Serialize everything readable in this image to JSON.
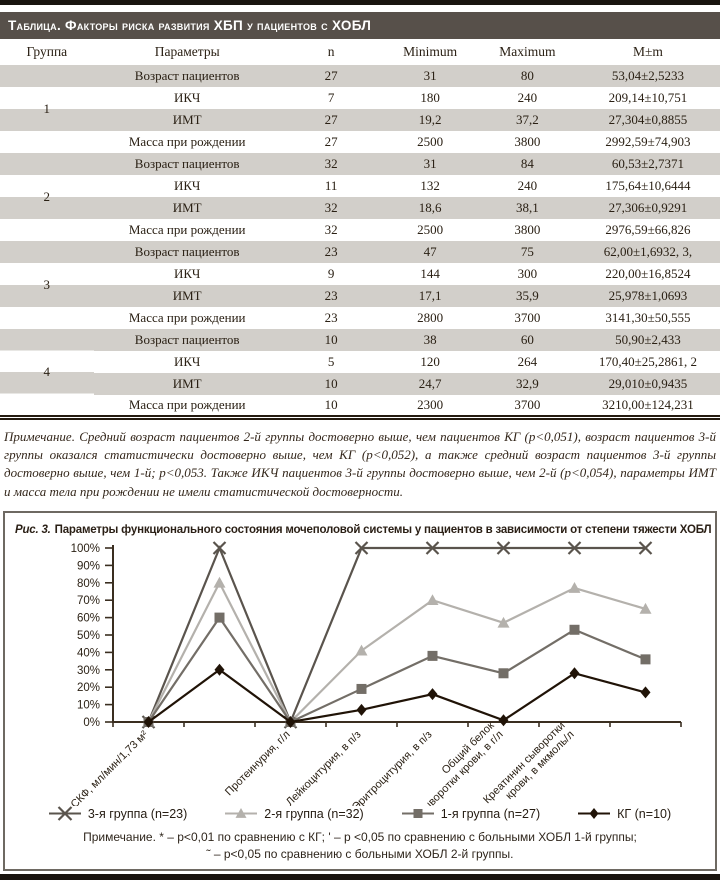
{
  "table": {
    "title": "Таблица. Факторы риска развития ХБП у пациентов с ХОБЛ",
    "columns": [
      "Группа",
      "Параметры",
      "n",
      "Minimum",
      "Maximum",
      "M±m"
    ],
    "groups": [
      {
        "group": "1",
        "rows": [
          [
            "Возраст пациентов",
            "27",
            "31",
            "80",
            "53,04±2,5233"
          ],
          [
            "ИКЧ",
            "7",
            "180",
            "240",
            "209,14±10,751"
          ],
          [
            "ИМТ",
            "27",
            "19,2",
            "37,2",
            "27,304±0,8855"
          ],
          [
            "Масса при рождении",
            "27",
            "2500",
            "3800",
            "2992,59±74,903"
          ]
        ]
      },
      {
        "group": "2",
        "rows": [
          [
            "Возраст пациентов",
            "32",
            "31",
            "84",
            "60,53±2,7371"
          ],
          [
            "ИКЧ",
            "11",
            "132",
            "240",
            "175,64±10,6444"
          ],
          [
            "ИМТ",
            "32",
            "18,6",
            "38,1",
            "27,306±0,9291"
          ],
          [
            "Масса при рождении",
            "32",
            "2500",
            "3800",
            "2976,59±66,826"
          ]
        ]
      },
      {
        "group": "3",
        "rows": [
          [
            "Возраст пациентов",
            "23",
            "47",
            "75",
            "62,00±1,6932, 3,"
          ],
          [
            "ИКЧ",
            "9",
            "144",
            "300",
            "220,00±16,8524"
          ],
          [
            "ИМТ",
            "23",
            "17,1",
            "35,9",
            "25,978±1,0693"
          ],
          [
            "Масса при рождении",
            "23",
            "2800",
            "3700",
            "3141,30±50,555"
          ]
        ]
      },
      {
        "group": "4",
        "rows": [
          [
            "Возраст пациентов",
            "10",
            "38",
            "60",
            "50,90±2,433"
          ],
          [
            "ИКЧ",
            "5",
            "120",
            "264",
            "170,40±25,2861, 2"
          ],
          [
            "ИМТ",
            "10",
            "24,7",
            "32,9",
            "29,010±0,9435"
          ],
          [
            "Масса при рождении",
            "10",
            "2300",
            "3700",
            "3210,00±124,231"
          ]
        ]
      }
    ],
    "note": "Примечание. Средний возраст пациентов 2-й группы достоверно выше, чем пациентов КГ (р<0,051), возраст пациентов 3-й группы оказался статистически достоверно выше, чем КГ (р<0,052), а также средний возраст пациентов 3-й группы достоверно выше, чем 1-й; р<0,053. Также ИКЧ пациентов 3-й группы достоверно выше, чем 2-й (р<0,054), параметры ИМТ и масса тела при рождении не имели статистической достоверности."
  },
  "figure": {
    "caption_prefix": "Рис. 3.",
    "caption": "Параметры функционального состояния мочеполовой системы у пациентов в зависимости от степени тяжести ХОБЛ",
    "note_line1": "Примечание. * – р<0,01 по сравнению с КГ; ' – р <0,05 по сравнению с больными ХОБЛ 1-й группы;",
    "note_line2": "˜ – р<0,05 по сравнению с больными ХОБЛ 2-й группы."
  },
  "chart_data": {
    "type": "line",
    "ylim": [
      0,
      100
    ],
    "x_slots": 8,
    "grid": false,
    "legend_position": "bottom",
    "axis_color": "#3a2e20",
    "text_color": "#2c2216",
    "y_ticks": [
      "0%",
      "10%",
      "20%",
      "30%",
      "40%",
      "50%",
      "60%",
      "70%",
      "80%",
      "90%",
      "100%"
    ],
    "categories": [
      {
        "slot": 0,
        "lines": [
          "СКФ, мл/мин/1,73 м²"
        ]
      },
      {
        "slot": 2,
        "lines": [
          "Протеинурия, г/л"
        ]
      },
      {
        "slot": 3,
        "lines": [
          "Лейкоцитурия, в п/з"
        ]
      },
      {
        "slot": 4,
        "lines": [
          "Эритроцитурия, в п/з"
        ]
      },
      {
        "slot": 5,
        "lines": [
          "Общий белок",
          "сыворотки крови, в г/л"
        ]
      },
      {
        "slot": 6,
        "lines": [
          "Креатинин сыворотки",
          "крови, в мкмоль/л"
        ]
      }
    ],
    "series": [
      {
        "name": "3-я группа (n=23)",
        "marker": "x",
        "color": "#5a544d",
        "values": [
          0,
          100,
          0,
          100,
          100,
          100,
          100,
          100
        ]
      },
      {
        "name": "2-я группа (n=32)",
        "marker": "triangle",
        "color": "#b4b1ac",
        "values": [
          0,
          80,
          0,
          41,
          70,
          57,
          77,
          65
        ]
      },
      {
        "name": "1-я группа (n=27)",
        "marker": "square",
        "color": "#736e67",
        "values": [
          0,
          60,
          0,
          19,
          38,
          28,
          53,
          36
        ]
      },
      {
        "name": "КГ (n=10)",
        "marker": "diamond",
        "color": "#201307",
        "values": [
          0,
          30,
          0,
          7,
          16,
          1,
          28,
          17
        ]
      }
    ]
  }
}
